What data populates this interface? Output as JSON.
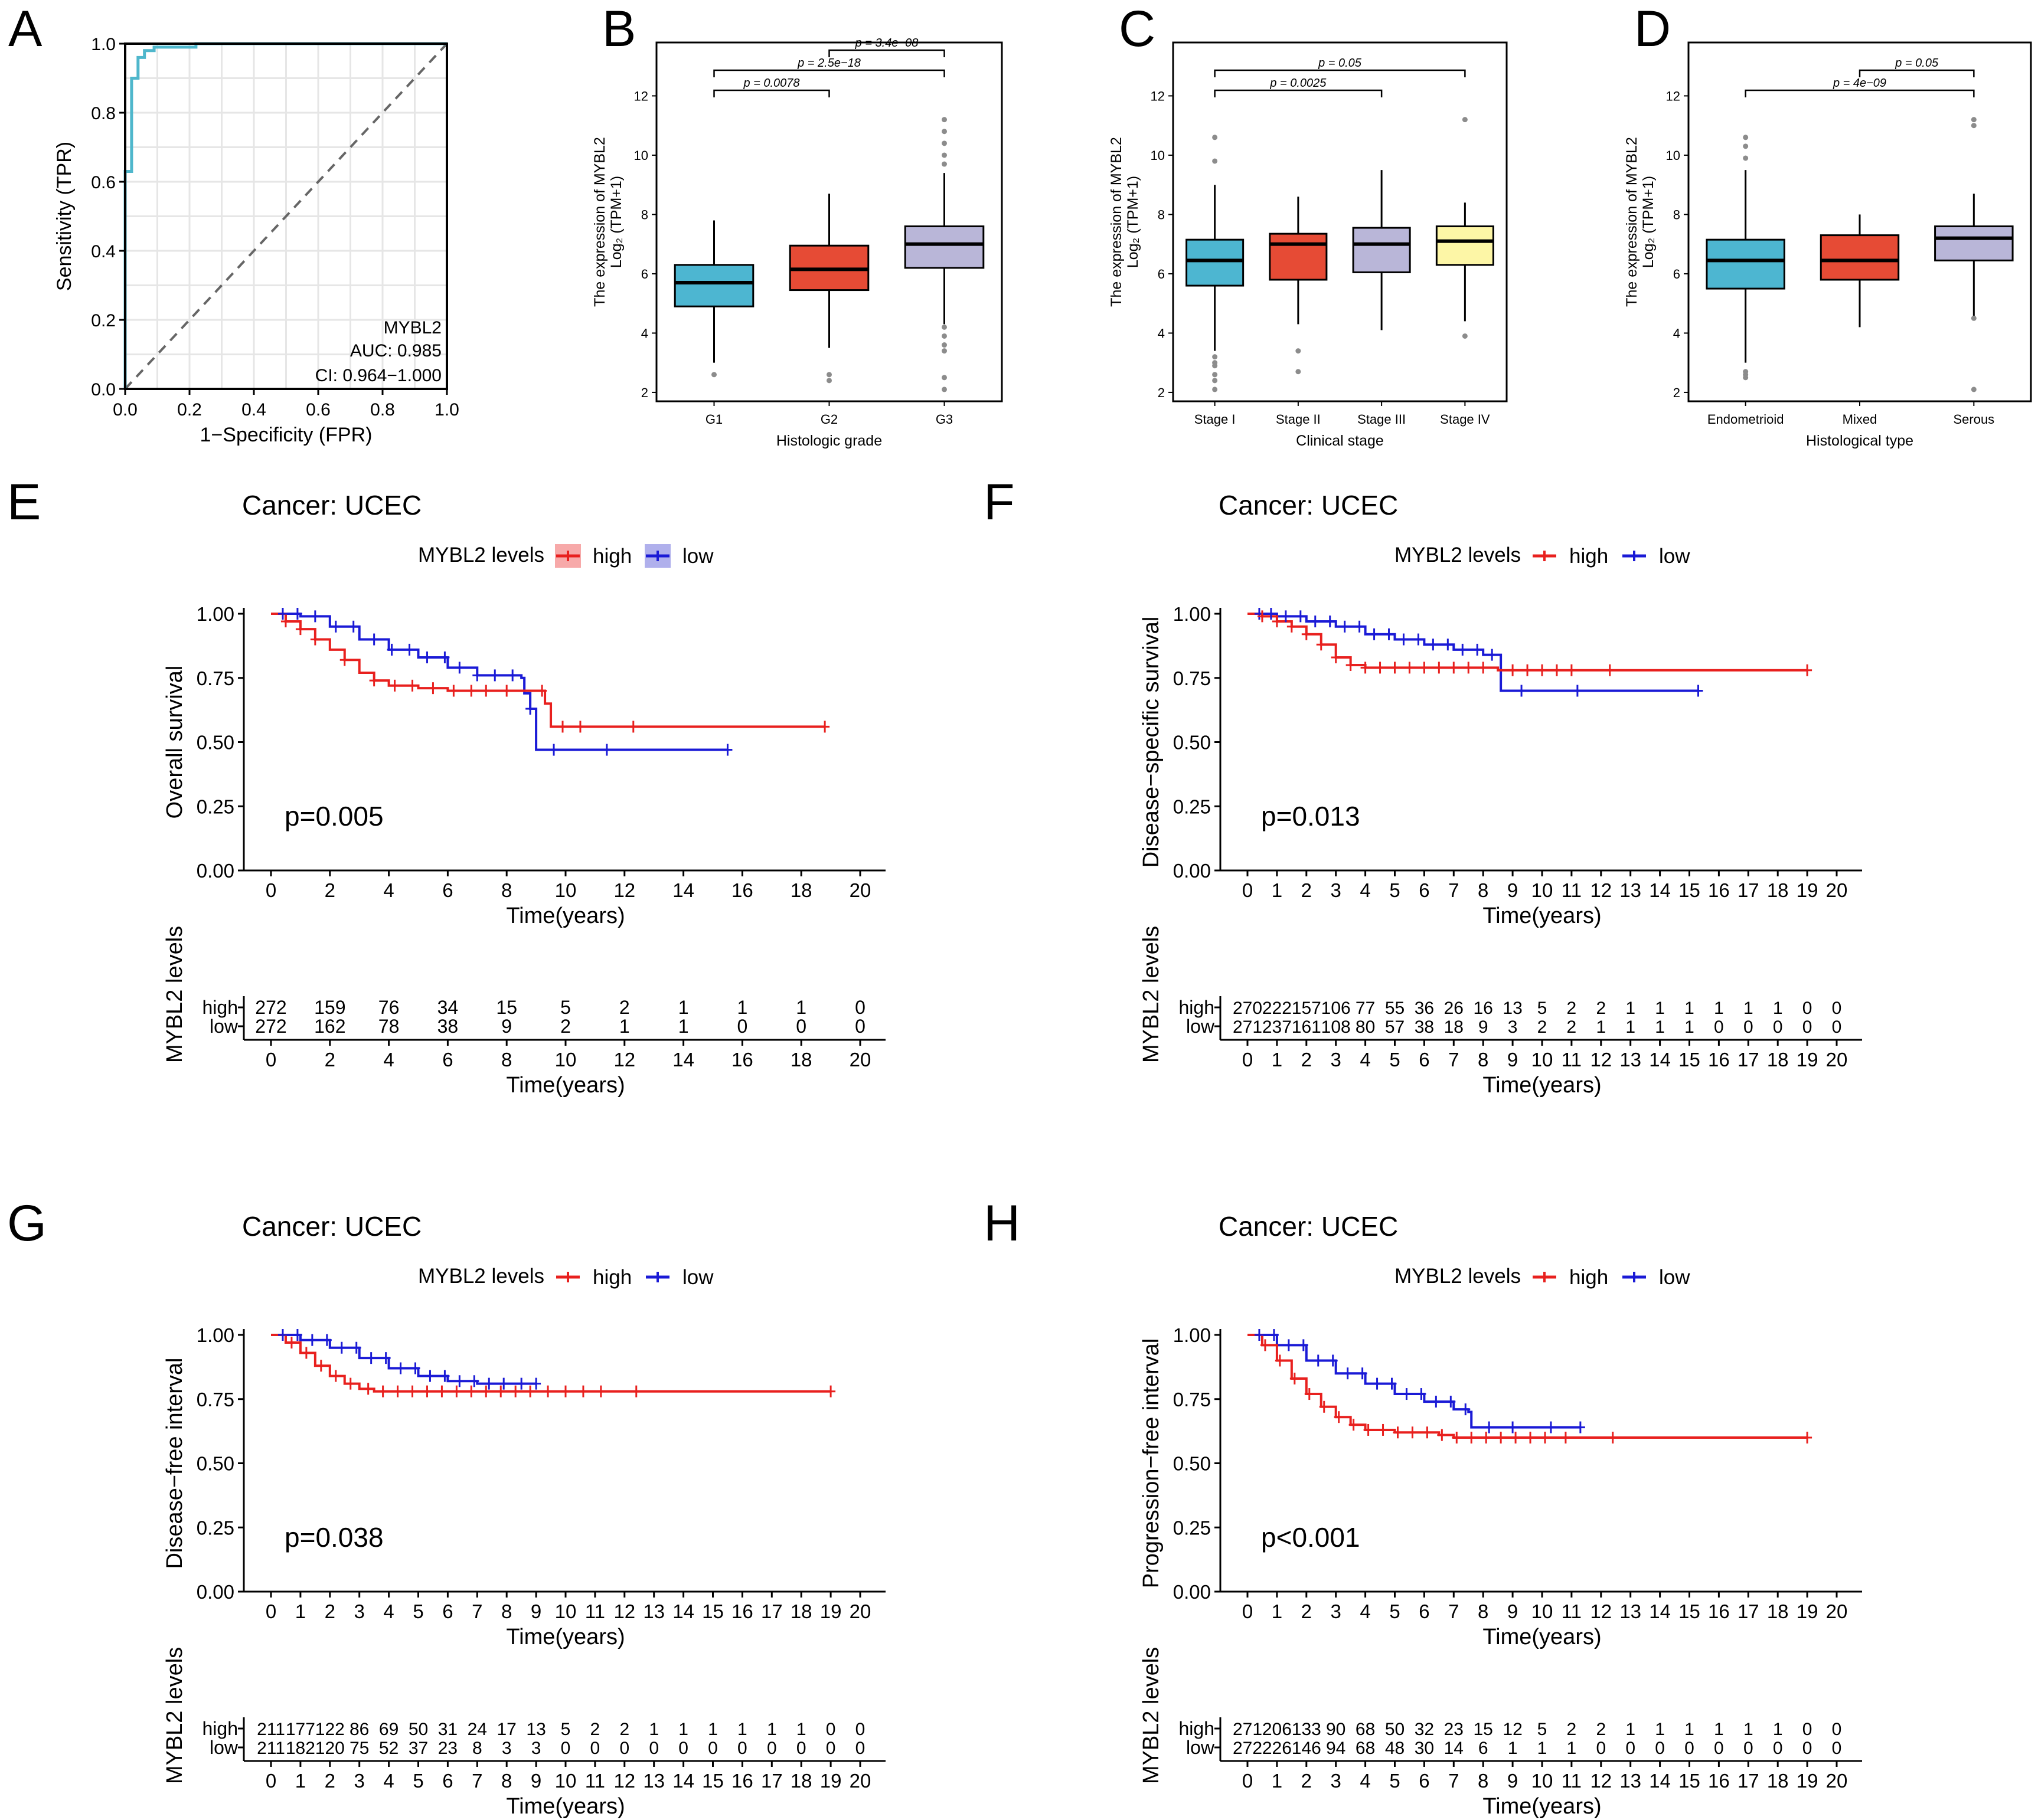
{
  "colors": {
    "roc": "#4fb7cc",
    "high": "#e8201e",
    "low": "#1a1ad6",
    "box_g1": "#4db6d1",
    "box_g2": "#e64b35",
    "box_g3": "#b9b6d8",
    "box_stage4": "#fdf6a6",
    "outlier": "#8c8c8c",
    "highlegbg": "#f7a9a9",
    "lowlegbg": "#b0b0ec"
  },
  "chart_data": [
    {
      "id": "A",
      "type": "line",
      "panel_label": "A",
      "xlabel": "1−Specificity (FPR)",
      "ylabel": "Sensitivity (TPR)",
      "xlim": [
        0,
        1
      ],
      "ylim": [
        0,
        1
      ],
      "xticks": [
        "0.0",
        "0.2",
        "0.4",
        "0.6",
        "0.8",
        "1.0"
      ],
      "yticks": [
        "0.0",
        "0.2",
        "0.4",
        "0.6",
        "0.8",
        "1.0"
      ],
      "gene": "MYBL2",
      "auc": "AUC: 0.985",
      "ci": "CI: 0.964−1.000",
      "roc_points": [
        [
          0,
          0
        ],
        [
          0,
          0.63
        ],
        [
          0.02,
          0.63
        ],
        [
          0.02,
          0.9
        ],
        [
          0.04,
          0.9
        ],
        [
          0.04,
          0.96
        ],
        [
          0.06,
          0.96
        ],
        [
          0.06,
          0.98
        ],
        [
          0.09,
          0.98
        ],
        [
          0.09,
          0.99
        ],
        [
          0.22,
          0.99
        ],
        [
          0.22,
          1
        ],
        [
          1,
          1
        ]
      ]
    },
    {
      "id": "B",
      "type": "box",
      "panel_label": "B",
      "xlabel": "Histologic grade",
      "ylabel_line1": "The expression of MYBL2",
      "ylabel_line2": "Log₂ (TPM+1)",
      "ylim": [
        1.7,
        13.8
      ],
      "yticks": [
        "2",
        "4",
        "6",
        "8",
        "10",
        "12"
      ],
      "categories": [
        "G1",
        "G2",
        "G3"
      ],
      "boxes": [
        {
          "q1": 4.9,
          "median": 5.7,
          "q3": 6.3,
          "whislo": 3.0,
          "whishi": 7.8,
          "outliers": [
            2.6
          ]
        },
        {
          "q1": 5.45,
          "median": 6.15,
          "q3": 6.95,
          "whislo": 3.5,
          "whishi": 8.7,
          "outliers": [
            2.6,
            2.4
          ]
        },
        {
          "q1": 6.2,
          "median": 7.0,
          "q3": 7.6,
          "whislo": 4.3,
          "whishi": 9.4,
          "outliers": [
            11.2,
            10.8,
            10.4,
            10.0,
            9.7,
            4.2,
            3.9,
            3.6,
            3.4,
            2.5,
            2.1
          ]
        }
      ],
      "comparisons": [
        {
          "from": 0,
          "to": 1,
          "level": 0,
          "label": "p = 0.0078"
        },
        {
          "from": 0,
          "to": 2,
          "level": 1,
          "label": "p = 2.5e−18"
        },
        {
          "from": 1,
          "to": 2,
          "level": 2,
          "label": "p = 3.4e−08"
        }
      ]
    },
    {
      "id": "C",
      "type": "box",
      "panel_label": "C",
      "xlabel": "Clinical stage",
      "ylabel_line1": "The expression of MYBL2",
      "ylabel_line2": "Log₂ (TPM+1)",
      "ylim": [
        1.7,
        13.8
      ],
      "yticks": [
        "2",
        "4",
        "6",
        "8",
        "10",
        "12"
      ],
      "categories": [
        "Stage I",
        "Stage II",
        "Stage III",
        "Stage IV"
      ],
      "boxes": [
        {
          "q1": 5.6,
          "median": 6.45,
          "q3": 7.15,
          "whislo": 3.4,
          "whishi": 9.0,
          "outliers": [
            10.6,
            9.8,
            3.2,
            3.0,
            2.9,
            2.6,
            2.4,
            2.1
          ]
        },
        {
          "q1": 5.8,
          "median": 7.0,
          "q3": 7.35,
          "whislo": 4.3,
          "whishi": 8.6,
          "outliers": [
            3.4,
            2.7
          ]
        },
        {
          "q1": 6.05,
          "median": 7.0,
          "q3": 7.55,
          "whislo": 4.1,
          "whishi": 9.5,
          "outliers": []
        },
        {
          "q1": 6.3,
          "median": 7.1,
          "q3": 7.6,
          "whislo": 4.4,
          "whishi": 8.4,
          "outliers": [
            11.2,
            3.9
          ]
        }
      ],
      "comparisons": [
        {
          "from": 0,
          "to": 2,
          "level": 0,
          "label": "p = 0.0025"
        },
        {
          "from": 0,
          "to": 3,
          "level": 1,
          "label": "p = 0.05"
        }
      ]
    },
    {
      "id": "D",
      "type": "box",
      "panel_label": "D",
      "xlabel": "Histological type",
      "ylabel_line1": "The expression of MYBL2",
      "ylabel_line2": "Log₂ (TPM+1)",
      "ylim": [
        1.7,
        13.8
      ],
      "yticks": [
        "2",
        "4",
        "6",
        "8",
        "10",
        "12"
      ],
      "categories": [
        "Endometrioid",
        "Mixed",
        "Serous"
      ],
      "boxes": [
        {
          "q1": 5.5,
          "median": 6.45,
          "q3": 7.15,
          "whislo": 3.0,
          "whishi": 9.5,
          "outliers": [
            10.6,
            10.3,
            9.9,
            2.7,
            2.6,
            2.5
          ]
        },
        {
          "q1": 5.8,
          "median": 6.45,
          "q3": 7.3,
          "whislo": 4.2,
          "whishi": 8.0,
          "outliers": []
        },
        {
          "q1": 6.45,
          "median": 7.2,
          "q3": 7.6,
          "whislo": 4.5,
          "whishi": 8.7,
          "outliers": [
            11.2,
            11.0,
            4.5,
            2.1
          ]
        }
      ],
      "comparisons": [
        {
          "from": 0,
          "to": 2,
          "level": 0,
          "label": "p = 4e−09"
        },
        {
          "from": 1,
          "to": 2,
          "level": 1,
          "label": "p = 0.05"
        }
      ]
    },
    {
      "id": "E",
      "type": "line",
      "panel_label": "E",
      "title": "Cancer: UCEC",
      "legend_title": "MYBL2 levels",
      "legend_high": "high",
      "legend_low": "low",
      "legend_style": "box",
      "ylabel": "Overall survival",
      "xlabel": "Time(years)",
      "table_ylabel": "MYBL2 levels",
      "xlim": [
        0,
        20
      ],
      "ylim": [
        0,
        1
      ],
      "xticks": [
        "0",
        "2",
        "4",
        "6",
        "8",
        "10",
        "12",
        "14",
        "16",
        "18",
        "20"
      ],
      "yticks": [
        "0.00",
        "0.25",
        "0.50",
        "0.75",
        "1.00"
      ],
      "pvalue": "p=0.005",
      "series_high": [
        [
          0,
          1
        ],
        [
          0.5,
          0.97
        ],
        [
          1,
          0.94
        ],
        [
          1.5,
          0.9
        ],
        [
          2,
          0.86
        ],
        [
          2.5,
          0.82
        ],
        [
          3,
          0.77
        ],
        [
          3.5,
          0.74
        ],
        [
          4,
          0.72
        ],
        [
          5,
          0.71
        ],
        [
          6,
          0.7
        ],
        [
          8.5,
          0.7
        ],
        [
          9,
          0.7
        ],
        [
          9.3,
          0.65
        ],
        [
          9.5,
          0.56
        ],
        [
          18.8,
          0.56
        ]
      ],
      "series_low": [
        [
          0,
          1
        ],
        [
          1,
          0.99
        ],
        [
          2,
          0.95
        ],
        [
          3,
          0.9
        ],
        [
          4,
          0.86
        ],
        [
          5,
          0.83
        ],
        [
          6,
          0.79
        ],
        [
          7,
          0.76
        ],
        [
          8.5,
          0.75
        ],
        [
          8.6,
          0.69
        ],
        [
          8.8,
          0.63
        ],
        [
          9,
          0.47
        ],
        [
          15.5,
          0.47
        ]
      ],
      "censor_high": [
        0.5,
        1,
        1.5,
        2.5,
        3.5,
        4.2,
        4.8,
        5.5,
        6.2,
        6.8,
        7.3,
        8,
        9.2,
        9.9,
        10.5,
        12.3,
        18.8
      ],
      "censor_low": [
        0.4,
        0.9,
        1.5,
        2.2,
        2.8,
        3.5,
        4.1,
        4.7,
        5.3,
        5.9,
        6.4,
        7,
        7.6,
        8.2,
        8.8,
        9.6,
        11.4,
        15.5
      ],
      "risk_labels": {
        "high": "high",
        "low": "low"
      },
      "risk_high": [
        "272",
        "159",
        "76",
        "34",
        "15",
        "5",
        "2",
        "1",
        "1",
        "1",
        "0"
      ],
      "risk_low": [
        "272",
        "162",
        "78",
        "38",
        "9",
        "2",
        "1",
        "1",
        "0",
        "0",
        "0"
      ]
    },
    {
      "id": "F",
      "type": "line",
      "panel_label": "F",
      "title": "Cancer: UCEC",
      "legend_title": "MYBL2 levels",
      "legend_high": "high",
      "legend_low": "low",
      "legend_style": "line",
      "ylabel": "Disease−specific survival",
      "xlabel": "Time(years)",
      "table_ylabel": "MYBL2 levels",
      "xlim": [
        0,
        20
      ],
      "ylim": [
        0,
        1
      ],
      "xticks": [
        "0",
        "1",
        "2",
        "3",
        "4",
        "5",
        "6",
        "7",
        "8",
        "9",
        "10",
        "11",
        "12",
        "13",
        "14",
        "15",
        "16",
        "17",
        "18",
        "19",
        "20"
      ],
      "yticks": [
        "0.00",
        "0.25",
        "0.50",
        "0.75",
        "1.00"
      ],
      "pvalue": "p=0.013",
      "series_high": [
        [
          0,
          1
        ],
        [
          0.5,
          0.99
        ],
        [
          1,
          0.97
        ],
        [
          1.5,
          0.95
        ],
        [
          2,
          0.92
        ],
        [
          2.5,
          0.88
        ],
        [
          3,
          0.83
        ],
        [
          3.5,
          0.8
        ],
        [
          4,
          0.79
        ],
        [
          8.5,
          0.78
        ],
        [
          19,
          0.78
        ]
      ],
      "series_low": [
        [
          0,
          1
        ],
        [
          1,
          0.99
        ],
        [
          2,
          0.97
        ],
        [
          3,
          0.95
        ],
        [
          4,
          0.92
        ],
        [
          5,
          0.9
        ],
        [
          6,
          0.88
        ],
        [
          7,
          0.86
        ],
        [
          8,
          0.84
        ],
        [
          8.5,
          0.84
        ],
        [
          8.6,
          0.7
        ],
        [
          15.3,
          0.7
        ]
      ],
      "censor_high": [
        0.5,
        1,
        1.5,
        2,
        2.5,
        3,
        3.5,
        4,
        4.5,
        5,
        5.5,
        6,
        6.5,
        7,
        7.5,
        8,
        9,
        9.5,
        10,
        10.5,
        11,
        12.3,
        19
      ],
      "censor_low": [
        0.4,
        0.8,
        1.3,
        1.8,
        2.3,
        2.8,
        3.3,
        3.8,
        4.3,
        4.8,
        5.3,
        5.8,
        6.3,
        6.8,
        7.3,
        7.8,
        8.3,
        9.3,
        11.2,
        15.3
      ],
      "risk_labels": {
        "high": "high",
        "low": "low"
      },
      "risk_high": [
        "270",
        "222",
        "157",
        "106",
        "77",
        "55",
        "36",
        "26",
        "16",
        "13",
        "5",
        "2",
        "2",
        "1",
        "1",
        "1",
        "1",
        "1",
        "1",
        "0",
        "0"
      ],
      "risk_low": [
        "271",
        "237",
        "161",
        "108",
        "80",
        "57",
        "38",
        "18",
        "9",
        "3",
        "2",
        "2",
        "1",
        "1",
        "1",
        "1",
        "0",
        "0",
        "0",
        "0",
        "0"
      ]
    },
    {
      "id": "G",
      "type": "line",
      "panel_label": "G",
      "title": "Cancer: UCEC",
      "legend_title": "MYBL2 levels",
      "legend_high": "high",
      "legend_low": "low",
      "legend_style": "line",
      "ylabel": "Disease−free interval",
      "xlabel": "Time(years)",
      "table_ylabel": "MYBL2 levels",
      "xlim": [
        0,
        20
      ],
      "ylim": [
        0,
        1
      ],
      "xticks": [
        "0",
        "1",
        "2",
        "3",
        "4",
        "5",
        "6",
        "7",
        "8",
        "9",
        "10",
        "11",
        "12",
        "13",
        "14",
        "15",
        "16",
        "17",
        "18",
        "19",
        "20"
      ],
      "yticks": [
        "0.00",
        "0.25",
        "0.50",
        "0.75",
        "1.00"
      ],
      "pvalue": "p=0.038",
      "series_high": [
        [
          0,
          1
        ],
        [
          0.5,
          0.97
        ],
        [
          1,
          0.93
        ],
        [
          1.5,
          0.88
        ],
        [
          2,
          0.84
        ],
        [
          2.5,
          0.81
        ],
        [
          3,
          0.79
        ],
        [
          3.5,
          0.78
        ],
        [
          19,
          0.78
        ]
      ],
      "series_low": [
        [
          0,
          1
        ],
        [
          1,
          0.98
        ],
        [
          2,
          0.95
        ],
        [
          3,
          0.91
        ],
        [
          4,
          0.87
        ],
        [
          5,
          0.84
        ],
        [
          6,
          0.82
        ],
        [
          7,
          0.81
        ],
        [
          9,
          0.81
        ]
      ],
      "censor_high": [
        0.7,
        1.2,
        1.7,
        2.2,
        2.7,
        3.3,
        3.8,
        4.3,
        4.8,
        5.3,
        5.8,
        6.3,
        6.8,
        7.3,
        7.8,
        8.3,
        8.8,
        9.4,
        10,
        10.6,
        11.2,
        12.4,
        19
      ],
      "censor_low": [
        0.4,
        0.9,
        1.4,
        1.9,
        2.4,
        2.9,
        3.4,
        3.9,
        4.4,
        4.9,
        5.4,
        5.9,
        6.4,
        6.9,
        7.4,
        7.9,
        8.5,
        9
      ],
      "risk_labels": {
        "high": "high",
        "low": "low"
      },
      "risk_high": [
        "211",
        "177",
        "122",
        "86",
        "69",
        "50",
        "31",
        "24",
        "17",
        "13",
        "5",
        "2",
        "2",
        "1",
        "1",
        "1",
        "1",
        "1",
        "1",
        "0",
        "0"
      ],
      "risk_low": [
        "211",
        "182",
        "120",
        "75",
        "52",
        "37",
        "23",
        "8",
        "3",
        "3",
        "0",
        "0",
        "0",
        "0",
        "0",
        "0",
        "0",
        "0",
        "0",
        "0",
        "0"
      ]
    },
    {
      "id": "H",
      "type": "line",
      "panel_label": "H",
      "title": "Cancer: UCEC",
      "legend_title": "MYBL2 levels",
      "legend_high": "high",
      "legend_low": "low",
      "legend_style": "line",
      "ylabel": "Progression−free interval",
      "xlabel": "Time(years)",
      "table_ylabel": "MYBL2 levels",
      "xlim": [
        0,
        20
      ],
      "ylim": [
        0,
        1
      ],
      "xticks": [
        "0",
        "1",
        "2",
        "3",
        "4",
        "5",
        "6",
        "7",
        "8",
        "9",
        "10",
        "11",
        "12",
        "13",
        "14",
        "15",
        "16",
        "17",
        "18",
        "19",
        "20"
      ],
      "yticks": [
        "0.00",
        "0.25",
        "0.50",
        "0.75",
        "1.00"
      ],
      "pvalue": "p<0.001",
      "series_high": [
        [
          0,
          1
        ],
        [
          0.5,
          0.96
        ],
        [
          1,
          0.9
        ],
        [
          1.5,
          0.83
        ],
        [
          2,
          0.77
        ],
        [
          2.5,
          0.72
        ],
        [
          3,
          0.68
        ],
        [
          3.5,
          0.65
        ],
        [
          4,
          0.63
        ],
        [
          5,
          0.62
        ],
        [
          6.5,
          0.61
        ],
        [
          7,
          0.6
        ],
        [
          19,
          0.6
        ]
      ],
      "series_low": [
        [
          0,
          1
        ],
        [
          1,
          0.96
        ],
        [
          2,
          0.9
        ],
        [
          3,
          0.85
        ],
        [
          4,
          0.81
        ],
        [
          5,
          0.77
        ],
        [
          6,
          0.74
        ],
        [
          7,
          0.71
        ],
        [
          7.5,
          0.7
        ],
        [
          7.6,
          0.64
        ],
        [
          11.3,
          0.64
        ]
      ],
      "censor_high": [
        0.6,
        1.1,
        1.6,
        2.1,
        2.6,
        3.1,
        3.6,
        4.1,
        4.6,
        5.1,
        5.6,
        6.1,
        6.6,
        7.1,
        7.6,
        8.1,
        8.6,
        9.1,
        9.6,
        10.1,
        10.8,
        12.4,
        19
      ],
      "censor_low": [
        0.4,
        0.9,
        1.4,
        1.9,
        2.4,
        2.9,
        3.4,
        3.9,
        4.4,
        4.9,
        5.4,
        5.9,
        6.4,
        6.9,
        7.4,
        8.2,
        9,
        10.3,
        11.3
      ],
      "risk_labels": {
        "high": "high",
        "low": "low"
      },
      "risk_high": [
        "271",
        "206",
        "133",
        "90",
        "68",
        "50",
        "32",
        "23",
        "15",
        "12",
        "5",
        "2",
        "2",
        "1",
        "1",
        "1",
        "1",
        "1",
        "1",
        "0",
        "0"
      ],
      "risk_low": [
        "272",
        "226",
        "146",
        "94",
        "68",
        "48",
        "30",
        "14",
        "6",
        "1",
        "1",
        "1",
        "0",
        "0",
        "0",
        "0",
        "0",
        "0",
        "0",
        "0",
        "0"
      ]
    }
  ]
}
